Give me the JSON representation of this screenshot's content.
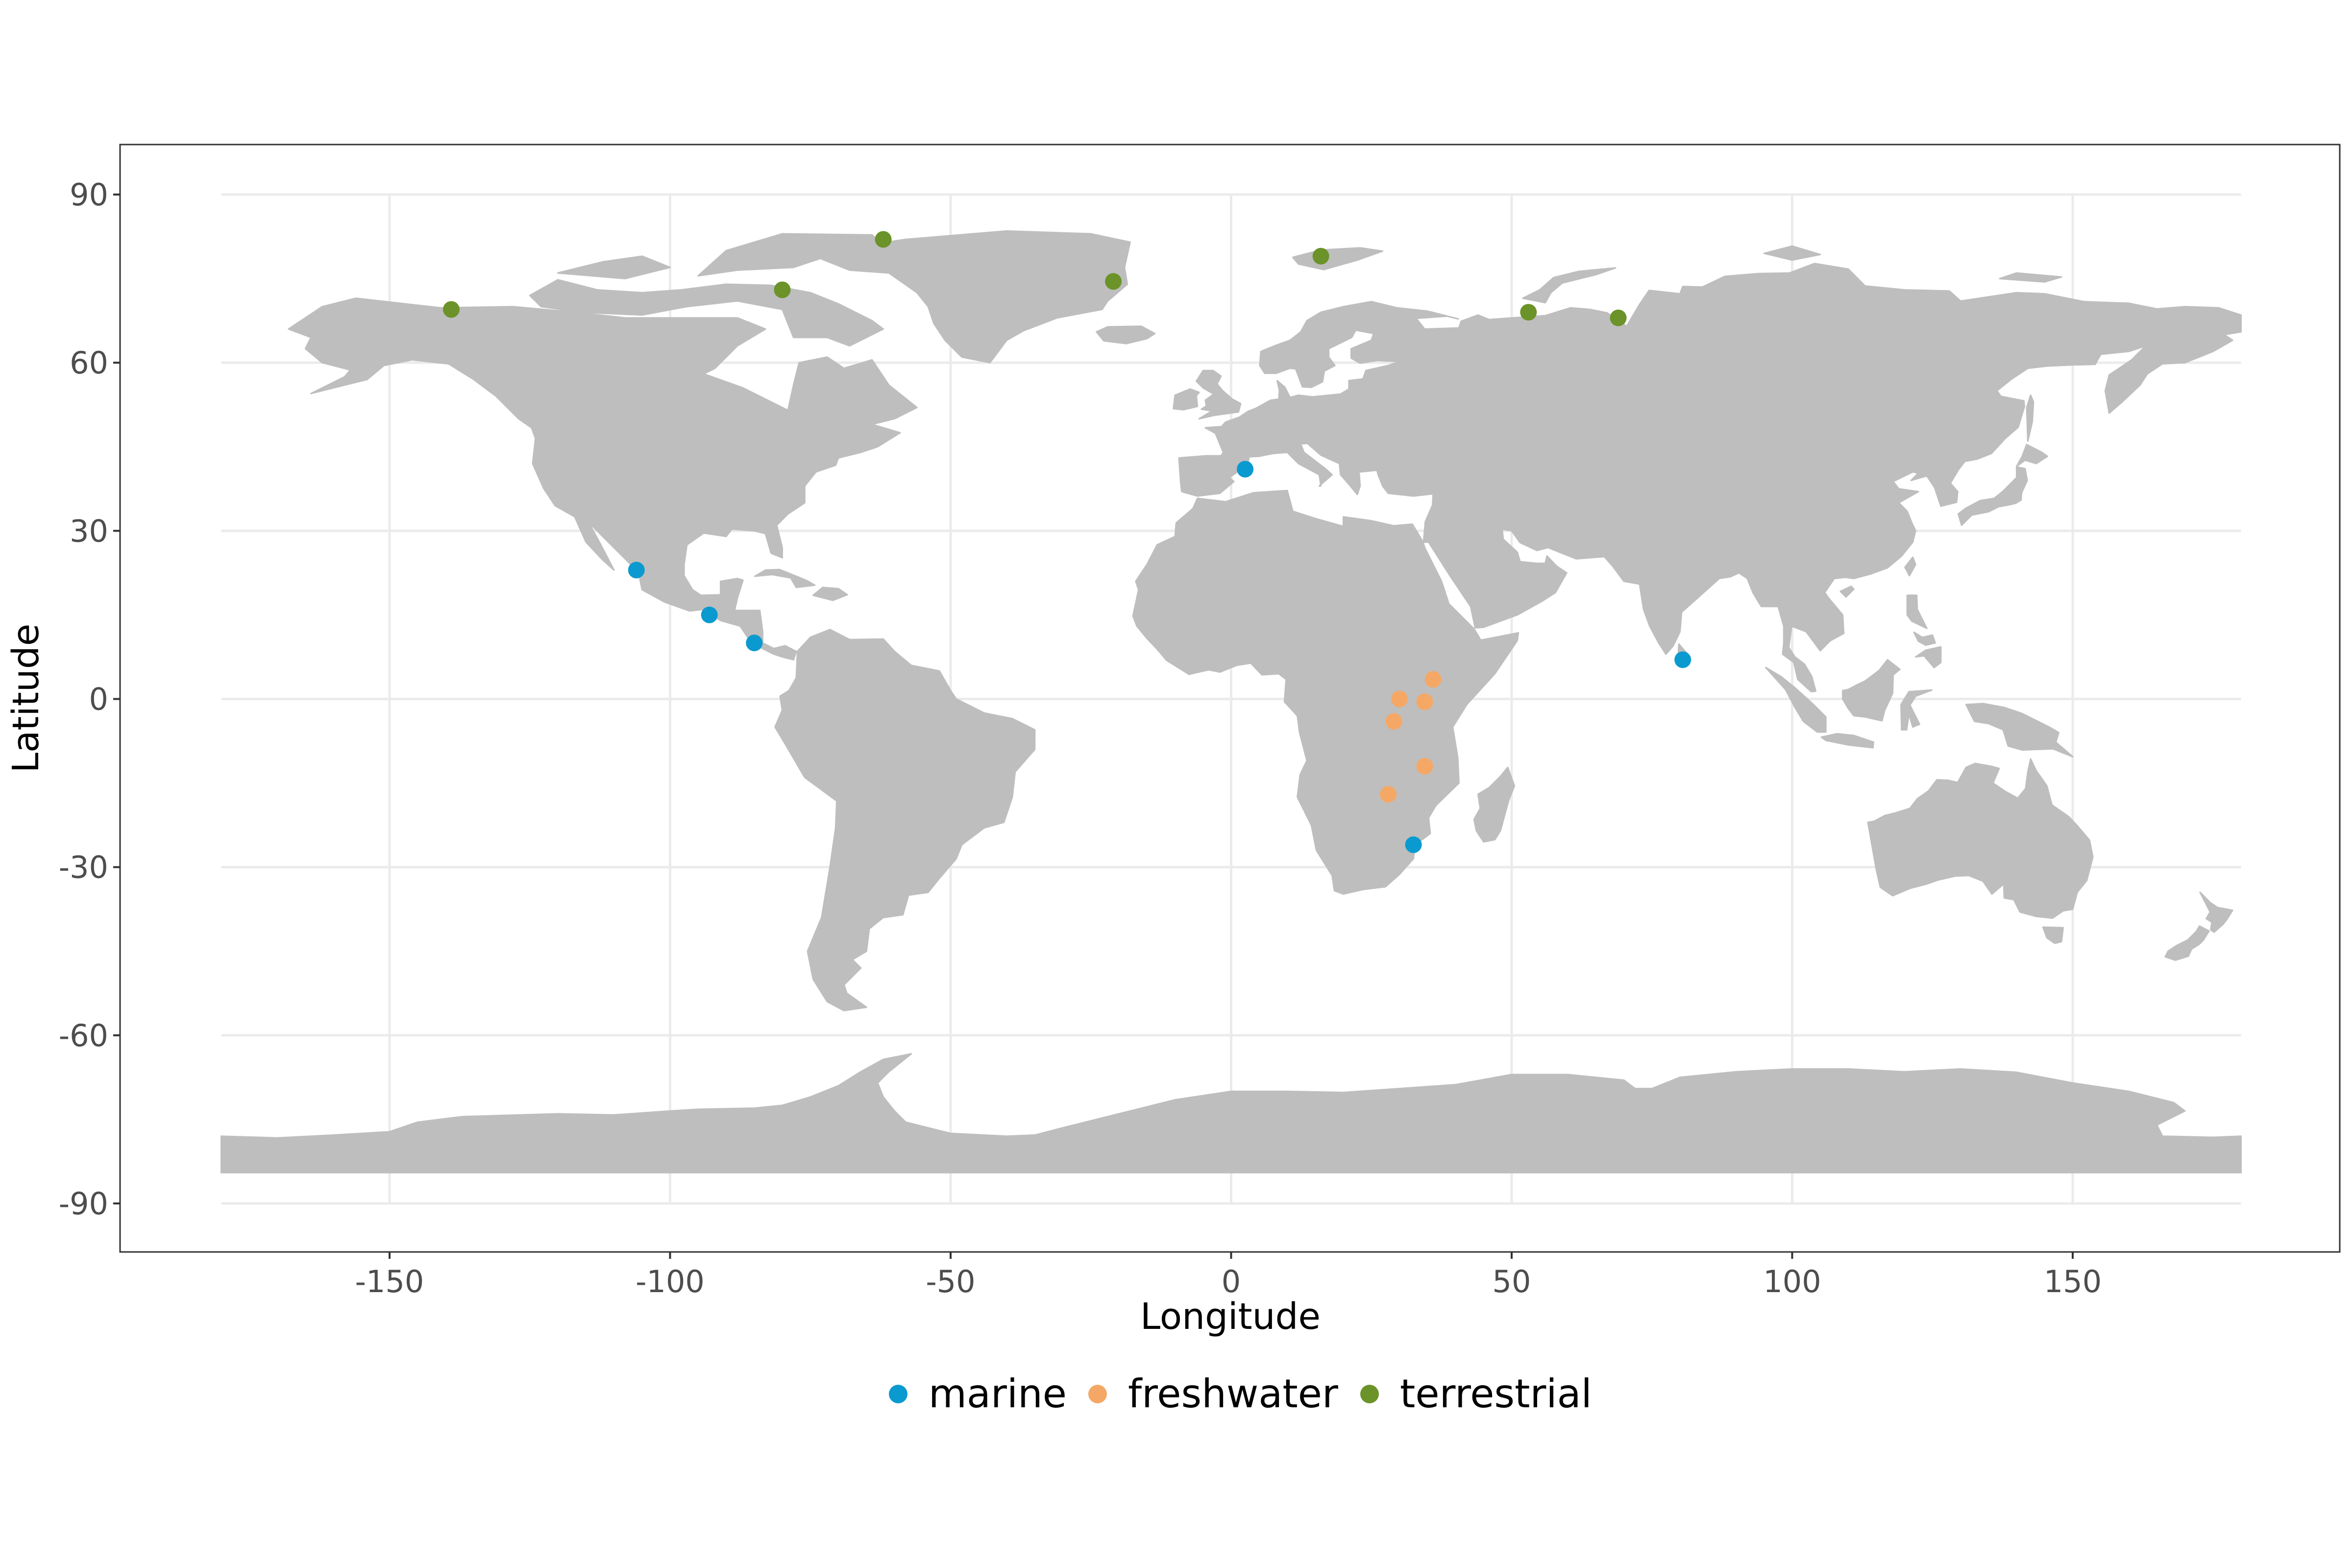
{
  "chart_data": {
    "type": "scatter",
    "title": "",
    "xlabel": "Longitude",
    "ylabel": "Latitude",
    "xlim": [
      -180,
      180
    ],
    "ylim": [
      -90,
      90
    ],
    "x_ticks": [
      "-150",
      "-100",
      "-50",
      "0",
      "50",
      "100",
      "150"
    ],
    "y_ticks": [
      "90",
      "60",
      "30",
      "0",
      "-30",
      "-60",
      "-90"
    ],
    "grid": true,
    "legend_position": "bottom",
    "background_map": "world land masses (grey)",
    "colors": {
      "marine": "#0a9ad0",
      "freshwater": "#f5a865",
      "terrestrial": "#6b9329",
      "land": "#bebebe"
    },
    "series": [
      {
        "name": "marine",
        "color": "#0a9ad0",
        "points": [
          [
            -106,
            23
          ],
          [
            -93,
            15
          ],
          [
            -85,
            10
          ],
          [
            2.5,
            41
          ],
          [
            32.5,
            -26
          ],
          [
            80.5,
            7
          ]
        ]
      },
      {
        "name": "freshwater",
        "color": "#f5a865",
        "points": [
          [
            30,
            0
          ],
          [
            36,
            3.5
          ],
          [
            34.5,
            -0.5
          ],
          [
            29,
            -4
          ],
          [
            34.5,
            -12
          ],
          [
            28,
            -17
          ]
        ]
      },
      {
        "name": "terrestrial",
        "color": "#6b9329",
        "points": [
          [
            -139,
            69.5
          ],
          [
            -80,
            73
          ],
          [
            -62,
            82
          ],
          [
            -21,
            74.5
          ],
          [
            16,
            79
          ],
          [
            53,
            69
          ],
          [
            69,
            68
          ]
        ]
      }
    ]
  }
}
